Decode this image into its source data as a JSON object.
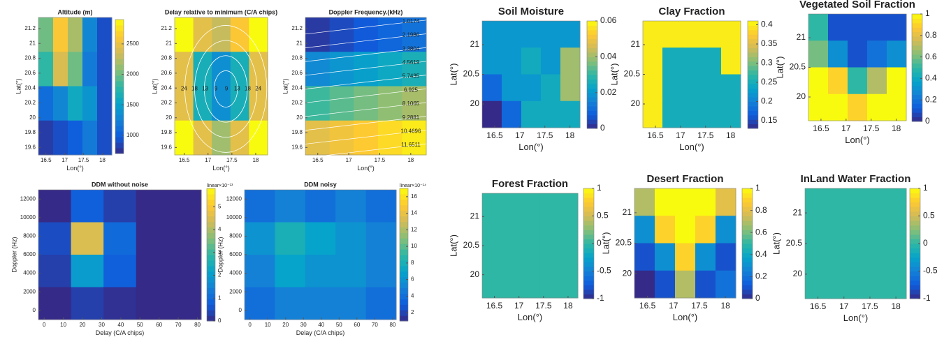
{
  "chart_data": [
    {
      "type": "heatmap",
      "title": "Altitude (m)",
      "xlabel": "Lon(°)",
      "ylabel": "Lat(°)",
      "xlim": [
        16.3,
        18.25
      ],
      "ylim": [
        19.5,
        21.35
      ],
      "xticks": [
        16.5,
        17,
        17.5,
        18
      ],
      "yticks": [
        19.6,
        19.8,
        20,
        20.2,
        20.4,
        20.6,
        20.8,
        21,
        21.2
      ],
      "clim": [
        700,
        2900
      ],
      "cticks": [
        1000,
        1500,
        2000,
        2500
      ],
      "z": [
        [
          2000,
          2600,
          2200,
          1300,
          900
        ],
        [
          1800,
          2400,
          2000,
          1200,
          900
        ],
        [
          1100,
          1300,
          1600,
          1400,
          900
        ],
        [
          800,
          900,
          1000,
          1200,
          900
        ]
      ]
    },
    {
      "type": "heatmap",
      "title": "Delay relative to minimum (C/A chips)",
      "xlabel": "Lon(°)",
      "ylabel": "Lat(°)",
      "xlim": [
        16.3,
        18.25
      ],
      "ylim": [
        19.5,
        21.35
      ],
      "xticks": [
        16.5,
        17,
        17.5,
        18
      ],
      "yticks": [
        19.6,
        19.8,
        20,
        20.2,
        20.4,
        20.6,
        20.8,
        21,
        21.2
      ],
      "clim": [
        0,
        30
      ],
      "contour_labels": [
        24,
        18,
        13,
        9,
        9,
        13,
        18,
        24
      ],
      "z": [
        [
          30,
          24,
          22,
          26,
          30
        ],
        [
          24,
          13,
          9,
          13,
          24
        ],
        [
          24,
          13,
          9,
          13,
          24
        ],
        [
          30,
          24,
          20,
          24,
          30
        ]
      ]
    },
    {
      "type": "heatmap",
      "title": "Doppler Frequency.(kHz)",
      "xlabel": "Lon(°)",
      "ylabel": "Lat(°)",
      "xlim": [
        16.3,
        18.25
      ],
      "ylim": [
        19.5,
        21.35
      ],
      "xticks": [
        16.5,
        17,
        17.5,
        18
      ],
      "yticks": [
        19.6,
        19.8,
        20,
        20.2,
        20.4,
        20.6,
        20.8,
        21,
        21.2
      ],
      "clim": [
        0,
        12.5
      ],
      "contour_labels": [
        1.0174,
        2.1986,
        3.3804,
        4.5619,
        5.7435,
        6.925,
        8.1065,
        9.2881,
        10.4696,
        11.6511
      ],
      "z": [
        [
          0.5,
          1,
          1.5,
          2,
          2.5
        ],
        [
          3.5,
          4,
          4.5,
          5,
          5.5
        ],
        [
          6.5,
          7,
          7.5,
          8,
          8.5
        ],
        [
          10,
          10.5,
          11,
          11.5,
          12
        ]
      ]
    },
    {
      "type": "heatmap",
      "title": "DDM without noise",
      "xlabel": "Delay (C/A chips)",
      "ylabel": "Doppler (Hz)",
      "xlim": [
        -3,
        82
      ],
      "ylim": [
        -1000,
        13000
      ],
      "xticks": [
        0,
        10,
        20,
        30,
        40,
        50,
        60,
        70,
        80
      ],
      "yticks": [
        0,
        2000,
        4000,
        6000,
        8000,
        10000,
        12000
      ],
      "clim": [
        0,
        5.8
      ],
      "cticks": [
        0,
        1,
        2,
        3,
        4,
        5
      ],
      "clabel": "linear×10⁻¹³",
      "z": [
        [
          0,
          0.8,
          0.3,
          0,
          0
        ],
        [
          0.5,
          4.5,
          1,
          0,
          0
        ],
        [
          0.3,
          2,
          0.8,
          0,
          0
        ],
        [
          0,
          0.3,
          0.1,
          0,
          0
        ]
      ]
    },
    {
      "type": "heatmap",
      "title": "DDM noisy",
      "xlabel": "Delay (C/A chips)",
      "ylabel": "Doppler (Hz)",
      "xlim": [
        -3,
        82
      ],
      "ylim": [
        -1000,
        13000
      ],
      "xticks": [
        0,
        10,
        20,
        30,
        40,
        50,
        60,
        70,
        80
      ],
      "yticks": [
        0,
        2000,
        4000,
        6000,
        8000,
        10000,
        12000
      ],
      "clim": [
        1,
        17
      ],
      "cticks": [
        2,
        4,
        6,
        8,
        10,
        12,
        14,
        16
      ],
      "clabel": "linear×10⁻¹⁴",
      "z": [
        [
          4,
          5,
          4,
          5,
          4
        ],
        [
          6,
          8,
          7,
          6,
          5
        ],
        [
          5,
          7,
          6,
          6,
          5
        ],
        [
          4,
          5,
          5,
          5,
          4
        ]
      ]
    },
    {
      "type": "heatmap",
      "title": "Soil Moisture",
      "xlabel": "Lon(°)",
      "ylabel": "Lat(°)",
      "xlim": [
        16.25,
        18.2
      ],
      "ylim": [
        19.6,
        21.4
      ],
      "xticks": [
        16.5,
        17,
        17.5,
        18
      ],
      "yticks": [
        20,
        20.5,
        21
      ],
      "clim": [
        0,
        0.06
      ],
      "cticks": [
        0,
        0.02,
        0.04,
        0.06
      ],
      "z": [
        [
          0.02,
          0.02,
          0.02,
          0.02,
          0.02
        ],
        [
          0.02,
          0.02,
          0.025,
          0.02,
          0.04
        ],
        [
          0.01,
          0.02,
          0.02,
          0.025,
          0.04
        ],
        [
          0,
          0.01,
          0.025,
          0.025,
          0.025
        ]
      ]
    },
    {
      "type": "heatmap",
      "title": "Clay Fraction",
      "xlabel": "Lon(°)",
      "ylabel": "Lat(°)",
      "xlim": [
        16.25,
        18.2
      ],
      "ylim": [
        19.6,
        21.4
      ],
      "xticks": [
        16.5,
        17,
        17.5,
        18
      ],
      "yticks": [
        20,
        20.5,
        21
      ],
      "clim": [
        0.13,
        0.41
      ],
      "cticks": [
        0.15,
        0.2,
        0.25,
        0.3,
        0.35,
        0.4
      ],
      "z": [
        [
          0.4,
          0.4,
          0.4,
          0.4,
          0.4
        ],
        [
          0.4,
          0.25,
          0.25,
          0.25,
          0.4
        ],
        [
          0.4,
          0.25,
          0.25,
          0.25,
          0.25
        ],
        [
          0.4,
          0.25,
          0.25,
          0.25,
          0.25
        ]
      ]
    },
    {
      "type": "heatmap",
      "title": "Vegetated Soil Fraction",
      "xlabel": "Lon(°)",
      "ylabel": "Lat(°)",
      "xlim": [
        16.25,
        18.2
      ],
      "ylim": [
        19.6,
        21.4
      ],
      "xticks": [
        16.5,
        17,
        17.5,
        18
      ],
      "yticks": [
        20,
        20.5,
        21
      ],
      "clim": [
        0,
        1
      ],
      "cticks": [
        0,
        0.2,
        0.4,
        0.6,
        0.8,
        1
      ],
      "z": [
        [
          0.5,
          0.1,
          0.1,
          0.1,
          0.1
        ],
        [
          0.6,
          0.3,
          0.1,
          0.2,
          0.3
        ],
        [
          1,
          0.9,
          0.5,
          0.7,
          1
        ],
        [
          1,
          1,
          0.9,
          1,
          1
        ]
      ]
    },
    {
      "type": "heatmap",
      "title": "Forest Fraction",
      "xlabel": "Lon(°)",
      "ylabel": "Lat(°)",
      "xlim": [
        16.25,
        18.2
      ],
      "ylim": [
        19.6,
        21.4
      ],
      "xticks": [
        16.5,
        17,
        17.5,
        18
      ],
      "yticks": [
        20,
        20.5,
        21
      ],
      "clim": [
        -1,
        1
      ],
      "cticks": [
        -1,
        -0.5,
        0,
        0.5,
        1
      ],
      "z": [
        [
          0,
          0,
          0,
          0,
          0
        ],
        [
          0,
          0,
          0,
          0,
          0
        ],
        [
          0,
          0,
          0,
          0,
          0
        ],
        [
          0,
          0,
          0,
          0,
          0
        ]
      ]
    },
    {
      "type": "heatmap",
      "title": "Desert Fraction",
      "xlabel": "Lon(°)",
      "ylabel": "Lat(°)",
      "xlim": [
        16.25,
        18.2
      ],
      "ylim": [
        19.6,
        21.4
      ],
      "xticks": [
        16.5,
        17,
        17.5,
        18
      ],
      "yticks": [
        20,
        20.5,
        21
      ],
      "clim": [
        0,
        1
      ],
      "cticks": [
        0,
        0.2,
        0.4,
        0.6,
        0.8,
        1
      ],
      "z": [
        [
          0.7,
          1,
          1,
          1,
          0.8
        ],
        [
          0.3,
          0.9,
          1,
          0.9,
          0.3
        ],
        [
          0.1,
          0.3,
          0.9,
          0.3,
          0.1
        ],
        [
          0,
          0.1,
          0.7,
          0.1,
          0.2
        ]
      ]
    },
    {
      "type": "heatmap",
      "title": "InLand Water Fraction",
      "xlabel": "Lon(°)",
      "ylabel": "Lat(°)",
      "xlim": [
        16.25,
        18.2
      ],
      "ylim": [
        19.6,
        21.4
      ],
      "xticks": [
        16.5,
        17,
        17.5,
        18
      ],
      "yticks": [
        20,
        20.5,
        21
      ],
      "clim": [
        -1,
        1
      ],
      "cticks": [
        -1,
        -0.5,
        0,
        0.5,
        1
      ],
      "z": [
        [
          0,
          0,
          0,
          0,
          0
        ],
        [
          0,
          0,
          0,
          0,
          0
        ],
        [
          0,
          0,
          0,
          0,
          0
        ],
        [
          0,
          0,
          0,
          0,
          0
        ]
      ]
    }
  ]
}
